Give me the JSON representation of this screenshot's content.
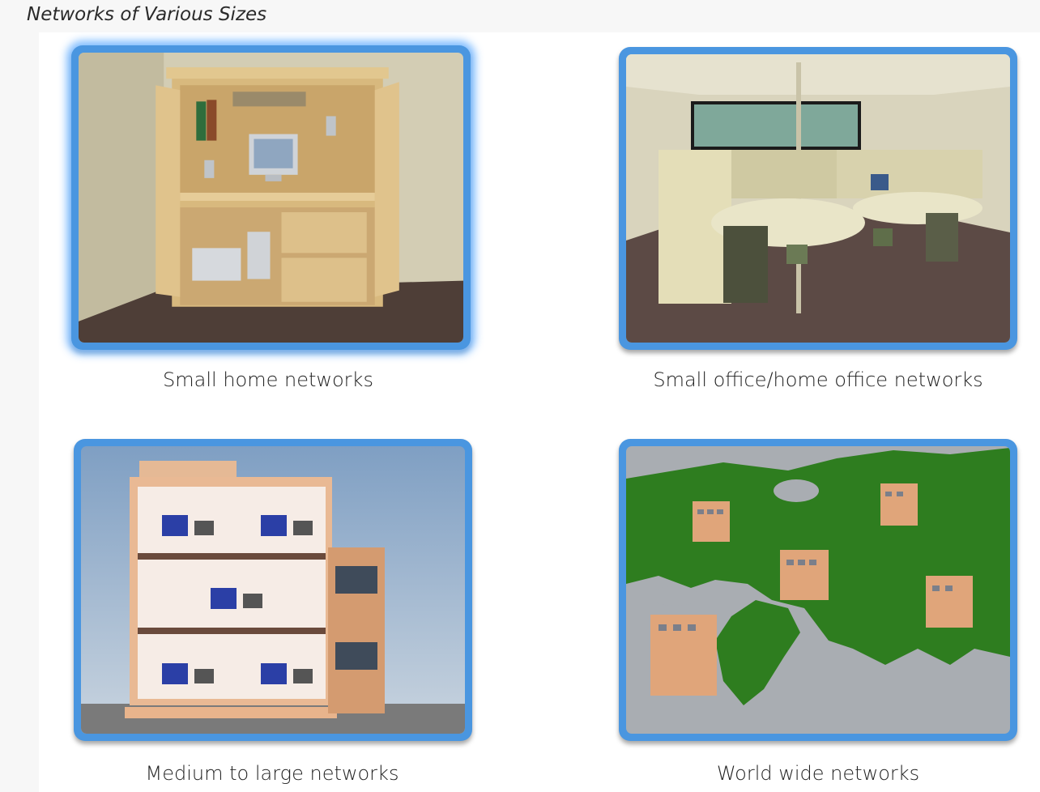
{
  "page": {
    "title": "Networks of Various Sizes"
  },
  "cards": [
    {
      "id": "home",
      "caption": "Small home networks",
      "image": "home-office-cabinet-illustration",
      "selected": true
    },
    {
      "id": "soho",
      "caption": "Small office/home office networks",
      "image": "cubicle-office-illustration",
      "selected": false
    },
    {
      "id": "medium",
      "caption": "Medium to large networks",
      "image": "multi-floor-building-illustration",
      "selected": false
    },
    {
      "id": "world",
      "caption": "World wide networks",
      "image": "world-map-buildings-illustration",
      "selected": false
    }
  ],
  "colors": {
    "card_border": "#4a96e0",
    "map_land": "#2e7d1f",
    "map_sea": "#a9adb2"
  }
}
